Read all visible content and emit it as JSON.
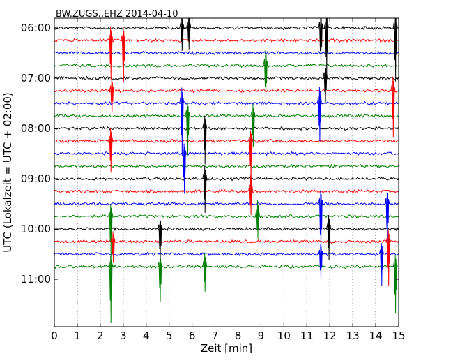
{
  "chart_data": {
    "type": "line",
    "title": "BW.ZUGS..EHZ 2014-04-10",
    "xlabel": "Zeit  [min]",
    "ylabel": "UTC (Lokalzeit = UTC + 02:00)",
    "xlim": [
      0,
      15
    ],
    "x_ticks": [
      "0",
      "1",
      "2",
      "3",
      "4",
      "5",
      "6",
      "7",
      "8",
      "9",
      "10",
      "11",
      "12",
      "13",
      "14",
      "15"
    ],
    "y_ticks": [
      "06:00",
      "07:00",
      "08:00",
      "09:00",
      "10:00",
      "11:00"
    ],
    "grid": "vertical dotted at each minute",
    "trace_minutes": 15,
    "trace_colors": [
      "#000000",
      "#ff0000",
      "#0000ff",
      "#008000"
    ],
    "traces_start": [
      "06:00",
      "06:15",
      "06:30",
      "06:45",
      "07:00",
      "07:15",
      "07:30",
      "07:45",
      "08:00",
      "08:15",
      "08:30",
      "08:45",
      "09:00",
      "09:15",
      "09:30",
      "09:45",
      "10:00",
      "10:15",
      "10:30",
      "10:45"
    ],
    "events": [
      {
        "trace": "06:00",
        "minute": 5.55
      },
      {
        "trace": "06:00",
        "minute": 5.85
      },
      {
        "trace": "06:00",
        "minute": 11.6
      },
      {
        "trace": "06:00",
        "minute": 11.85
      },
      {
        "trace": "06:00",
        "minute": 14.85
      },
      {
        "trace": "06:15",
        "minute": 2.45
      },
      {
        "trace": "06:15",
        "minute": 3.0
      },
      {
        "trace": "06:45",
        "minute": 9.2
      },
      {
        "trace": "07:00",
        "minute": 11.8
      },
      {
        "trace": "07:15",
        "minute": 2.5
      },
      {
        "trace": "07:15",
        "minute": 14.75
      },
      {
        "trace": "07:30",
        "minute": 5.55
      },
      {
        "trace": "07:30",
        "minute": 11.55
      },
      {
        "trace": "07:45",
        "minute": 5.8
      },
      {
        "trace": "07:45",
        "minute": 8.65
      },
      {
        "trace": "08:00",
        "minute": 6.55
      },
      {
        "trace": "08:15",
        "minute": 2.45
      },
      {
        "trace": "08:15",
        "minute": 8.55
      },
      {
        "trace": "08:30",
        "minute": 5.65
      },
      {
        "trace": "09:00",
        "minute": 6.55
      },
      {
        "trace": "09:15",
        "minute": 8.55
      },
      {
        "trace": "09:30",
        "minute": 11.6
      },
      {
        "trace": "09:30",
        "minute": 14.5
      },
      {
        "trace": "09:45",
        "minute": 2.45
      },
      {
        "trace": "09:45",
        "minute": 8.85
      },
      {
        "trace": "10:00",
        "minute": 4.6
      },
      {
        "trace": "10:00",
        "minute": 11.95
      },
      {
        "trace": "10:15",
        "minute": 2.55
      },
      {
        "trace": "10:15",
        "minute": 14.55
      },
      {
        "trace": "10:30",
        "minute": 11.6
      },
      {
        "trace": "10:30",
        "minute": 14.25
      },
      {
        "trace": "10:45",
        "minute": 2.45
      },
      {
        "trace": "10:45",
        "minute": 4.6
      },
      {
        "trace": "10:45",
        "minute": 6.55
      },
      {
        "trace": "10:45",
        "minute": 14.85
      }
    ]
  }
}
